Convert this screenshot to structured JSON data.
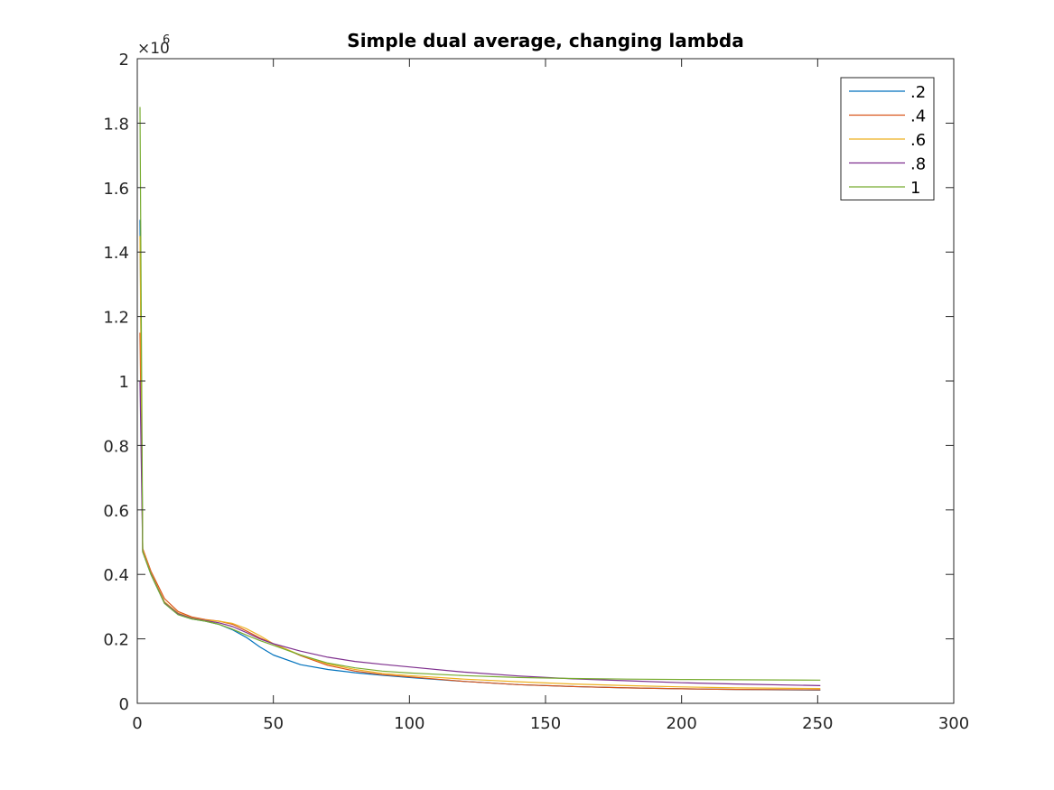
{
  "chart_data": {
    "type": "line",
    "title": "Simple dual average, changing lambda",
    "xlabel": "",
    "ylabel": "",
    "xlim": [
      0,
      300
    ],
    "ylim": [
      0,
      2000000
    ],
    "x_ticks": [
      0,
      50,
      100,
      150,
      200,
      250,
      300
    ],
    "x_tick_labels": [
      "0",
      "50",
      "100",
      "150",
      "200",
      "250",
      "300"
    ],
    "y_ticks": [
      0,
      200000,
      400000,
      600000,
      800000,
      1000000,
      1200000,
      1400000,
      1600000,
      1800000,
      2000000
    ],
    "y_tick_labels": [
      "0",
      "0.2",
      "0.4",
      "0.6",
      "0.8",
      "1",
      "1.2",
      "1.4",
      "1.6",
      "1.8",
      "2"
    ],
    "y_exponent_base": "×10",
    "y_exponent_power": "6",
    "grid": false,
    "legend_position": "top-right",
    "x": [
      1,
      2,
      5,
      10,
      15,
      20,
      25,
      30,
      35,
      40,
      45,
      50,
      60,
      70,
      80,
      90,
      100,
      120,
      140,
      160,
      180,
      200,
      220,
      251
    ],
    "series": [
      {
        "name": ".2",
        "color": "#0072BD",
        "values": [
          1500000,
          470000,
          400000,
          310000,
          275000,
          262000,
          255000,
          245000,
          228000,
          205000,
          175000,
          150000,
          120000,
          105000,
          95000,
          87000,
          80000,
          68000,
          58000,
          52000,
          48000,
          45000,
          43000,
          41000
        ]
      },
      {
        "name": ".4",
        "color": "#D95319",
        "values": [
          1150000,
          480000,
          410000,
          325000,
          285000,
          268000,
          260000,
          255000,
          245000,
          225000,
          203000,
          185000,
          148000,
          118000,
          100000,
          89000,
          82000,
          68000,
          58000,
          52000,
          48000,
          45000,
          43000,
          42000
        ]
      },
      {
        "name": ".6",
        "color": "#EDB120",
        "values": [
          1450000,
          475000,
          405000,
          315000,
          280000,
          265000,
          258000,
          255000,
          248000,
          232000,
          210000,
          185000,
          150000,
          122000,
          105000,
          93000,
          86000,
          75000,
          67000,
          60000,
          55000,
          51000,
          48000,
          46000
        ]
      },
      {
        "name": ".8",
        "color": "#7E2F8E",
        "values": [
          1000000,
          470000,
          402000,
          312000,
          278000,
          264000,
          257000,
          250000,
          238000,
          220000,
          200000,
          185000,
          162000,
          143000,
          130000,
          121000,
          113000,
          97000,
          85000,
          76000,
          70000,
          64000,
          60000,
          55000
        ]
      },
      {
        "name": "1",
        "color": "#77AC30",
        "values": [
          1850000,
          470000,
          400000,
          310000,
          275000,
          262000,
          255000,
          245000,
          230000,
          212000,
          195000,
          180000,
          150000,
          125000,
          110000,
          100000,
          94000,
          86000,
          80000,
          77000,
          75000,
          74000,
          73000,
          72000
        ]
      }
    ]
  }
}
